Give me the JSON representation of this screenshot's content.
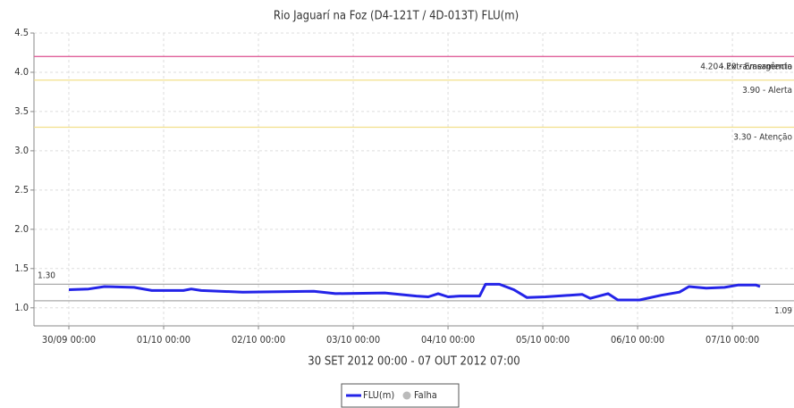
{
  "chart_data": {
    "type": "line",
    "title": "Rio Jaguarí na Foz (D4-121T / 4D-013T) FLU(m)",
    "x_label": "30 SET 2012 00:00 - 07 OUT 2012 07:00",
    "x": [
      "2012-09-30 00:00",
      "2012-09-30 05:00",
      "2012-09-30 09:00",
      "2012-09-30 16:30",
      "2012-09-30 21:00",
      "2012-10-01 05:00",
      "2012-10-01 07:00",
      "2012-10-01 09:30",
      "2012-10-01 20:00",
      "2012-10-02 14:00",
      "2012-10-02 19:30",
      "2012-10-03 08:00",
      "2012-10-03 16:00",
      "2012-10-03 19:00",
      "2012-10-03 21:30",
      "2012-10-04 00:00",
      "2012-10-04 03:00",
      "2012-10-04 08:00",
      "2012-10-04 09:30",
      "2012-10-04 13:00",
      "2012-10-04 16:40",
      "2012-10-04 20:00",
      "2012-10-05 00:40",
      "2012-10-05 10:00",
      "2012-10-05 12:00",
      "2012-10-05 16:30",
      "2012-10-05 19:00",
      "2012-10-06 00:30",
      "2012-10-06 06:00",
      "2012-10-06 10:36",
      "2012-10-06 13:00",
      "2012-10-06 17:24",
      "2012-10-06 22:00",
      "2012-10-07 01:24",
      "2012-10-07 06:00",
      "2012-10-07 07:00"
    ],
    "series": [
      {
        "name": "FLU(m)",
        "color": "#2424e8",
        "values": [
          1.23,
          1.24,
          1.27,
          1.26,
          1.22,
          1.22,
          1.24,
          1.22,
          1.2,
          1.21,
          1.18,
          1.19,
          1.15,
          1.14,
          1.18,
          1.14,
          1.15,
          1.15,
          1.3,
          1.3,
          1.23,
          1.13,
          1.14,
          1.17,
          1.12,
          1.18,
          1.1,
          1.1,
          1.16,
          1.2,
          1.27,
          1.25,
          1.26,
          1.29,
          1.29,
          1.27
        ]
      }
    ],
    "legend_extra": {
      "name": "Falha",
      "color": "#bbbbbb"
    },
    "reference_lines": [
      {
        "value": 4.2,
        "label": "4.20 - Extravasamento",
        "color": "#e0609a",
        "side": "right"
      },
      {
        "value": 4.2,
        "label": "4.20 - Emergência",
        "color": "#e0609a",
        "side": "right"
      },
      {
        "value": 3.9,
        "label": "3.90 - Alerta",
        "color": "#f2e08a",
        "side": "right"
      },
      {
        "value": 3.3,
        "label": "3.30 - Atenção",
        "color": "#f2e08a",
        "side": "right"
      },
      {
        "value": 1.3,
        "label": "1.30",
        "color": "#aaaaaa",
        "side": "left"
      },
      {
        "value": 1.09,
        "label": "1.09",
        "color": "#aaaaaa",
        "side": "right"
      }
    ],
    "xlim": [
      "2012-09-29 15:10",
      "2012-10-07 15:36"
    ],
    "xticks": [
      {
        "value": "2012-09-30 00:00",
        "label": "30/09 00:00"
      },
      {
        "value": "2012-10-01 00:00",
        "label": "01/10 00:00"
      },
      {
        "value": "2012-10-02 00:00",
        "label": "02/10 00:00"
      },
      {
        "value": "2012-10-03 00:00",
        "label": "03/10 00:00"
      },
      {
        "value": "2012-10-04 00:00",
        "label": "04/10 00:00"
      },
      {
        "value": "2012-10-05 00:00",
        "label": "05/10 00:00"
      },
      {
        "value": "2012-10-06 00:00",
        "label": "06/10 00:00"
      },
      {
        "value": "2012-10-07 00:00",
        "label": "07/10 00:00"
      }
    ],
    "ylim": [
      0.77,
      4.5
    ],
    "yticks": [
      {
        "value": 1,
        "label": "1.0"
      },
      1.5,
      {
        "value": 2,
        "label": "2.0"
      },
      2.5,
      {
        "value": 3,
        "label": "3.0"
      },
      3.5,
      {
        "value": 4,
        "label": "4.0"
      },
      4.5
    ],
    "grid": true
  }
}
